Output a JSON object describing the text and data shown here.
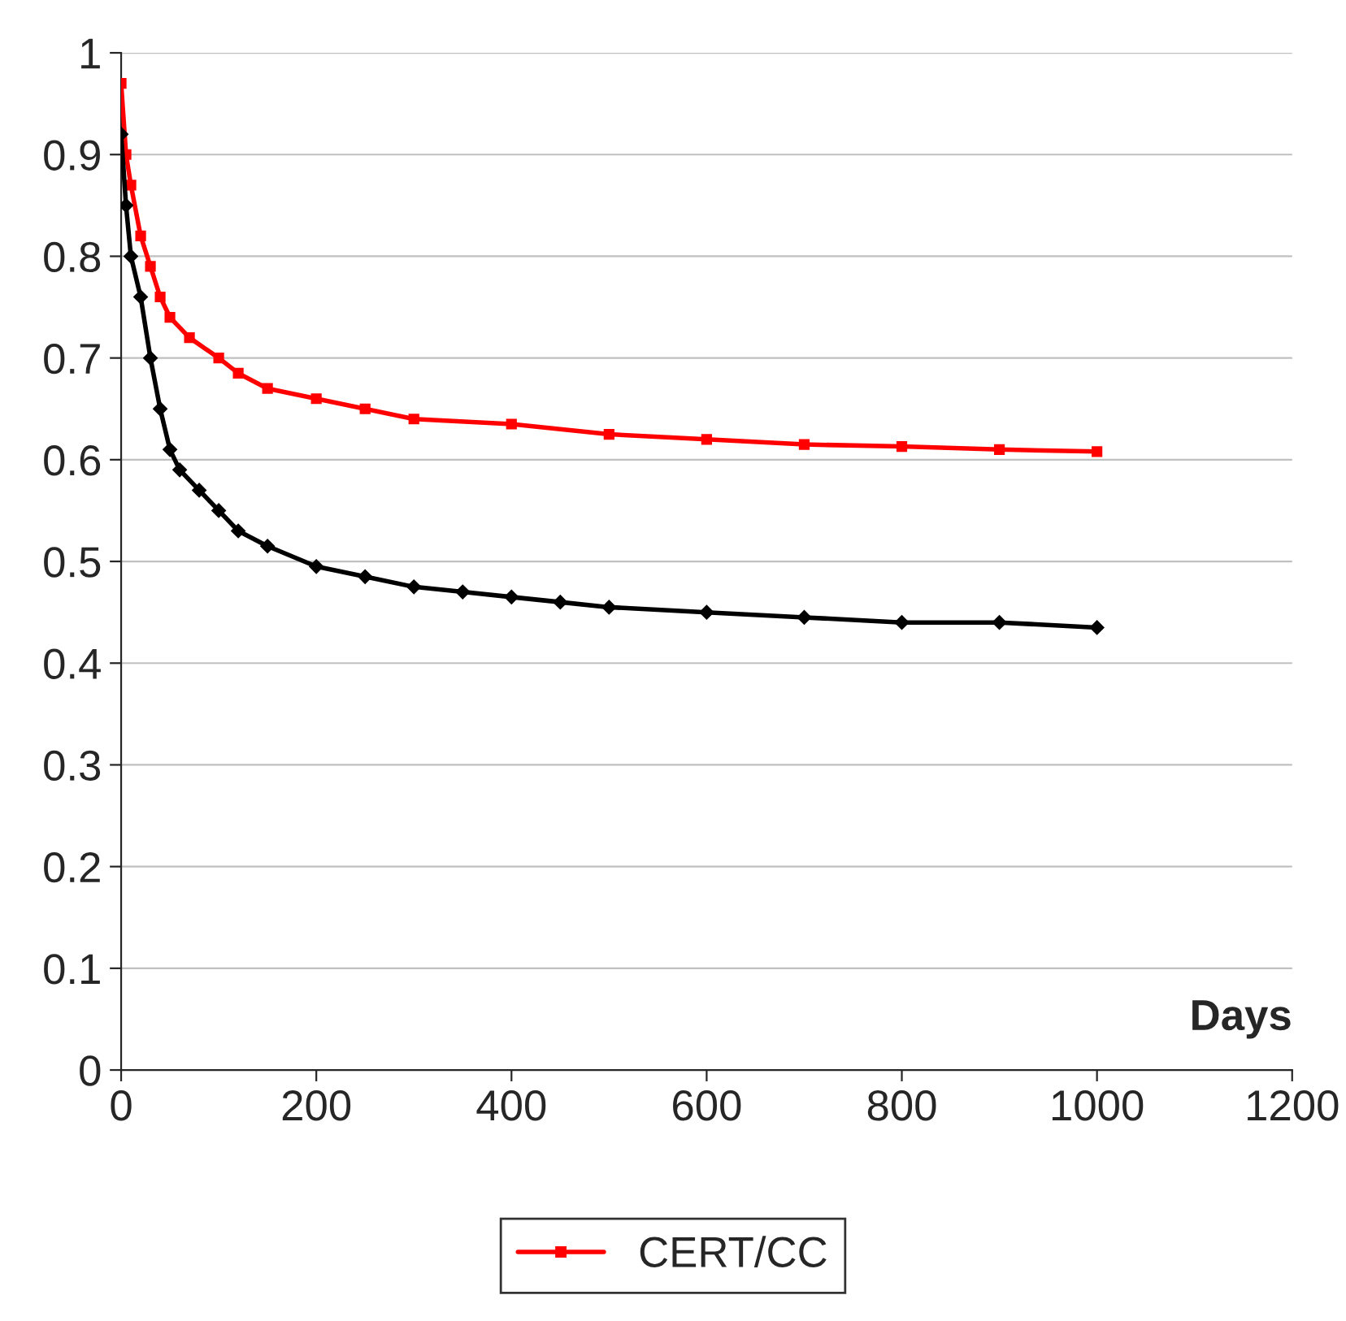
{
  "chart_data": {
    "type": "line",
    "xlabel": "Days",
    "xlim": [
      0,
      1200
    ],
    "xticks": [
      0,
      200,
      400,
      600,
      800,
      1000,
      1200
    ],
    "ylim": [
      0,
      1
    ],
    "yticks": [
      0,
      0.1,
      0.2,
      0.3,
      0.4,
      0.5,
      0.6,
      0.7,
      0.8,
      0.9,
      1
    ],
    "grid": "y",
    "legend": "bottom",
    "series": [
      {
        "color": "#000000",
        "marker": "diamond",
        "x": [
          0,
          5,
          10,
          20,
          30,
          40,
          50,
          60,
          80,
          100,
          120,
          150,
          200,
          250,
          300,
          350,
          400,
          450,
          500,
          600,
          700,
          800,
          900,
          1000
        ],
        "values": [
          0.92,
          0.85,
          0.8,
          0.76,
          0.7,
          0.65,
          0.61,
          0.59,
          0.57,
          0.55,
          0.53,
          0.515,
          0.495,
          0.485,
          0.475,
          0.47,
          0.465,
          0.46,
          0.455,
          0.45,
          0.445,
          0.44,
          0.44,
          0.435
        ]
      },
      {
        "name": "CERT/CC",
        "color": "#ff0000",
        "marker": "square",
        "x": [
          0,
          5,
          10,
          20,
          30,
          40,
          50,
          70,
          100,
          120,
          150,
          200,
          250,
          300,
          400,
          500,
          600,
          700,
          800,
          900,
          1000
        ],
        "values": [
          0.97,
          0.9,
          0.87,
          0.82,
          0.79,
          0.76,
          0.74,
          0.72,
          0.7,
          0.685,
          0.67,
          0.66,
          0.65,
          0.64,
          0.635,
          0.625,
          0.62,
          0.615,
          0.613,
          0.61,
          0.608
        ]
      }
    ]
  }
}
